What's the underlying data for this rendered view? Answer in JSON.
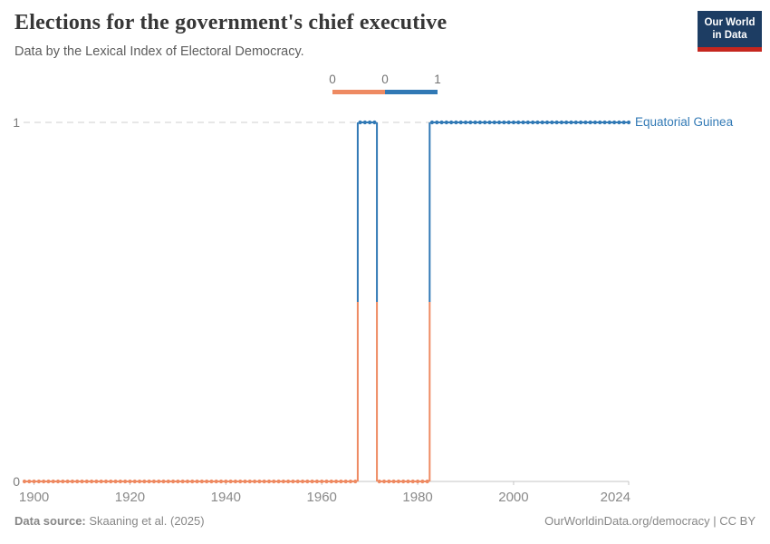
{
  "header": {
    "title": "Elections for the government's chief executive",
    "subtitle": "Data by the Lexical Index of Electoral Democracy."
  },
  "logo": {
    "line1": "Our World",
    "line2": "in Data",
    "bg_color": "#1D3D63",
    "accent_color": "#C5261E"
  },
  "legend": {
    "labels": [
      "0",
      "0",
      "1"
    ],
    "zero_color": "#EE8A62",
    "one_color": "#3179B5"
  },
  "chart_data": {
    "type": "line",
    "title": "Elections for the government's chief executive",
    "entity": "Equatorial Guinea",
    "entity_color": "#3179B5",
    "xlim": [
      1898,
      2024
    ],
    "ylim": [
      0,
      1
    ],
    "x_ticks": [
      1900,
      1920,
      1940,
      1960,
      1980,
      2000,
      2024
    ],
    "y_ticks": [
      0,
      1
    ],
    "grid": "dashed gridline at y=1, solid axis at y=0",
    "legend_position": "top-center",
    "value_colors": {
      "0": "#EE8A62",
      "1": "#3179B5"
    },
    "series": [
      {
        "name": "Equatorial Guinea",
        "segments": [
          {
            "start_year": 1898,
            "end_year": 1967,
            "value": 0
          },
          {
            "start_year": 1968,
            "end_year": 1971,
            "value": 1
          },
          {
            "start_year": 1972,
            "end_year": 1982,
            "value": 0
          },
          {
            "start_year": 1983,
            "end_year": 2024,
            "value": 1
          }
        ]
      }
    ]
  },
  "footer": {
    "source_label": "Data source:",
    "source_value": "Skaaning et al. (2025)",
    "attribution": "OurWorldinData.org/democracy | CC BY"
  }
}
